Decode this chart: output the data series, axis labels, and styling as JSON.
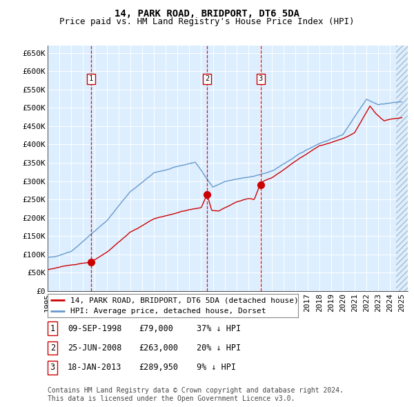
{
  "title": "14, PARK ROAD, BRIDPORT, DT6 5DA",
  "subtitle": "Price paid vs. HM Land Registry's House Price Index (HPI)",
  "ylim": [
    0,
    670000
  ],
  "yticks": [
    0,
    50000,
    100000,
    150000,
    200000,
    250000,
    300000,
    350000,
    400000,
    450000,
    500000,
    550000,
    600000,
    650000
  ],
  "ytick_labels": [
    "£0",
    "£50K",
    "£100K",
    "£150K",
    "£200K",
    "£250K",
    "£300K",
    "£350K",
    "£400K",
    "£450K",
    "£500K",
    "£550K",
    "£600K",
    "£650K"
  ],
  "xlim_start": 1995.0,
  "xlim_end": 2025.5,
  "xtick_years": [
    1995,
    1996,
    1997,
    1998,
    1999,
    2000,
    2001,
    2002,
    2003,
    2004,
    2005,
    2006,
    2007,
    2008,
    2009,
    2010,
    2011,
    2012,
    2013,
    2014,
    2015,
    2016,
    2017,
    2018,
    2019,
    2020,
    2021,
    2022,
    2023,
    2024,
    2025
  ],
  "hpi_line_color": "#6699cc",
  "price_line_color": "#cc0000",
  "marker_color": "#cc0000",
  "vline_color": "#cc0000",
  "background_color": "#ddeeff",
  "grid_color": "#ffffff",
  "sale_points": [
    {
      "date_num": 1998.69,
      "price": 79000,
      "label": "1"
    },
    {
      "date_num": 2008.49,
      "price": 263000,
      "label": "2"
    },
    {
      "date_num": 2013.05,
      "price": 289950,
      "label": "3"
    }
  ],
  "legend_address": "14, PARK ROAD, BRIDPORT, DT6 5DA (detached house)",
  "legend_hpi": "HPI: Average price, detached house, Dorset",
  "table_rows": [
    {
      "num": "1",
      "date": "09-SEP-1998",
      "price": "£79,000",
      "hpi": "37% ↓ HPI"
    },
    {
      "num": "2",
      "date": "25-JUN-2008",
      "price": "£263,000",
      "hpi": "20% ↓ HPI"
    },
    {
      "num": "3",
      "date": "18-JAN-2013",
      "price": "£289,950",
      "hpi": "9% ↓ HPI"
    }
  ],
  "footnote": "Contains HM Land Registry data © Crown copyright and database right 2024.\nThis data is licensed under the Open Government Licence v3.0.",
  "title_fontsize": 10,
  "subtitle_fontsize": 9,
  "axis_fontsize": 8,
  "legend_fontsize": 8,
  "table_fontsize": 8.5,
  "footnote_fontsize": 7
}
